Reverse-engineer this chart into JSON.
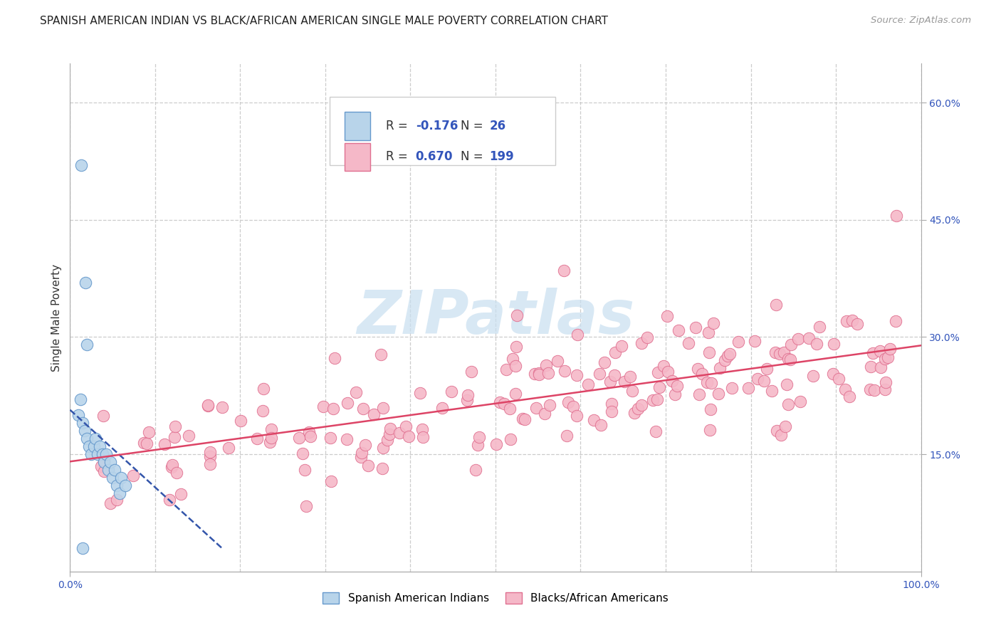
{
  "title": "SPANISH AMERICAN INDIAN VS BLACK/AFRICAN AMERICAN SINGLE MALE POVERTY CORRELATION CHART",
  "source": "Source: ZipAtlas.com",
  "ylabel": "Single Male Poverty",
  "xlim": [
    0,
    1.0
  ],
  "ylim": [
    0,
    0.65
  ],
  "yticks": [
    0.15,
    0.3,
    0.45,
    0.6
  ],
  "ytick_labels": [
    "15.0%",
    "30.0%",
    "45.0%",
    "60.0%"
  ],
  "xticks": [
    0.0,
    0.1,
    0.2,
    0.3,
    0.4,
    0.5,
    0.6,
    0.7,
    0.8,
    0.9,
    1.0
  ],
  "R_blue": -0.176,
  "N_blue": 26,
  "R_pink": 0.67,
  "N_pink": 199,
  "blue_face_color": "#b8d4ea",
  "blue_edge_color": "#6699cc",
  "pink_face_color": "#f5b8c8",
  "pink_edge_color": "#e07090",
  "blue_line_color": "#3355aa",
  "pink_line_color": "#dd4466",
  "watermark_color": "#c8dff0",
  "text_color": "#3355bb",
  "label_color": "#333333",
  "grid_color": "#cccccc",
  "background_color": "#ffffff",
  "legend_label_blue": "Spanish American Indians",
  "legend_label_pink": "Blacks/African Americans"
}
